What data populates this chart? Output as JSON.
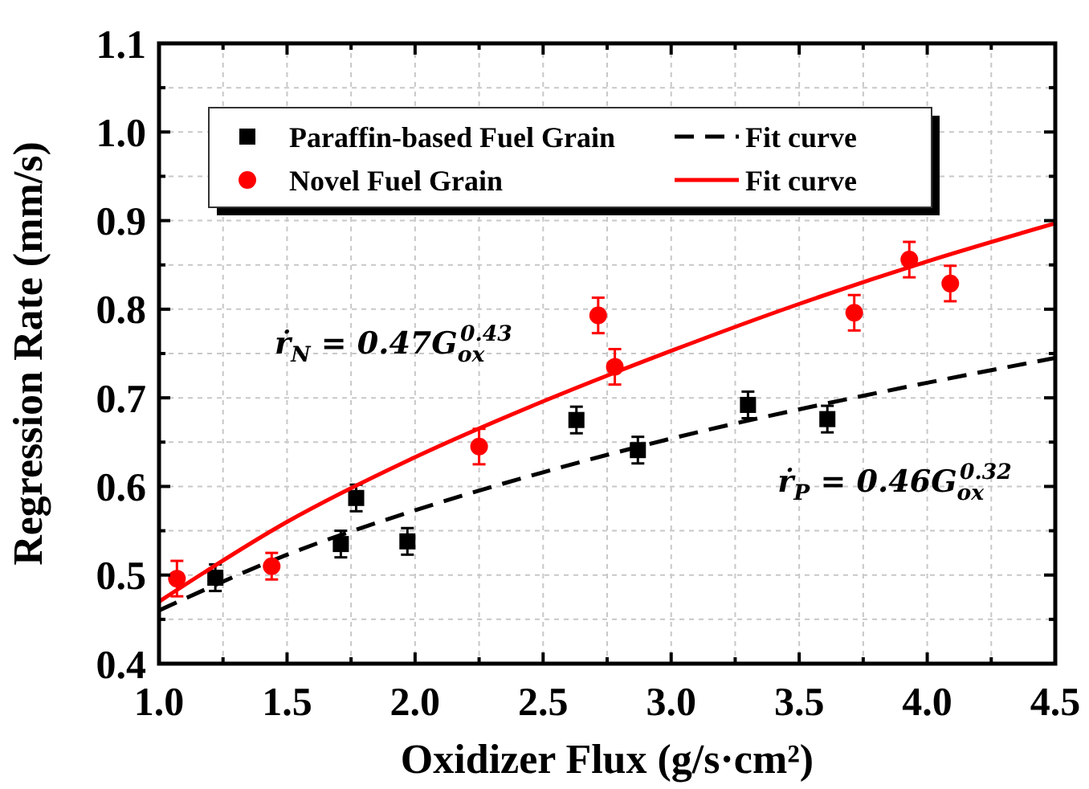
{
  "chart_data": {
    "type": "scatter",
    "xlabel": "Oxidizer Flux (g/s·cm²)",
    "ylabel": "Regression Rate (mm/s)",
    "xlim": [
      1,
      4.5
    ],
    "ylim": [
      0.4,
      1.1
    ],
    "xticks": [
      {
        "value": 1,
        "label": "1.0"
      },
      {
        "value": 1.25,
        "label": null
      },
      {
        "value": 1.5,
        "label": "1.5"
      },
      {
        "value": 1.75,
        "label": null
      },
      {
        "value": 2,
        "label": "2.0"
      },
      {
        "value": 2.25,
        "label": null
      },
      {
        "value": 2.5,
        "label": "2.5"
      },
      {
        "value": 2.75,
        "label": null
      },
      {
        "value": 3,
        "label": "3.0"
      },
      {
        "value": 3.25,
        "label": null
      },
      {
        "value": 3.5,
        "label": "3.5"
      },
      {
        "value": 3.75,
        "label": null
      },
      {
        "value": 4,
        "label": "4.0"
      },
      {
        "value": 4.25,
        "label": null
      },
      {
        "value": 4.5,
        "label": "4.5"
      }
    ],
    "yticks": [
      0.4,
      {
        "value": 0.45,
        "label": null
      },
      0.5,
      {
        "value": 0.55,
        "label": null
      },
      0.6,
      {
        "value": 0.65,
        "label": null
      },
      0.7,
      {
        "value": 0.75,
        "label": null
      },
      0.8,
      {
        "value": 0.85,
        "label": null
      },
      0.9,
      {
        "value": 0.95,
        "label": null
      },
      {
        "value": 1,
        "label": "1.0"
      },
      {
        "value": 1.05,
        "label": null
      },
      1.1
    ],
    "grid": true,
    "legend": "top left",
    "series": [
      {
        "name": "Paraffin-based Fuel Grain",
        "marker": "square",
        "color": "#000000",
        "x": [
          1.22,
          1.71,
          1.77,
          1.97,
          2.63,
          2.87,
          3.3,
          3.61
        ],
        "values": [
          0.497,
          0.535,
          0.587,
          0.538,
          0.675,
          0.641,
          0.692,
          0.676
        ],
        "errors": [
          0.015,
          0.015,
          0.015,
          0.015,
          0.015,
          0.015,
          0.015,
          0.015
        ]
      },
      {
        "name": "Fit curve",
        "type": "line",
        "line_style": "dashed",
        "marker": "none",
        "color": "#000000",
        "x": [
          1,
          1.5,
          2,
          2.5,
          3,
          3.5,
          4,
          4.5
        ],
        "values": [
          0.46,
          0.523,
          0.573,
          0.616,
          0.654,
          0.687,
          0.717,
          0.745
        ]
      },
      {
        "name": "Novel Fuel Grain",
        "marker": "circle",
        "color": "#ff0000",
        "x": [
          1.07,
          1.44,
          2.25,
          2.715,
          2.78,
          3.715,
          3.93,
          4.09
        ],
        "values": [
          0.496,
          0.51,
          0.645,
          0.793,
          0.735,
          0.796,
          0.856,
          0.829
        ],
        "errors": [
          0.02,
          0.015,
          0.02,
          0.02,
          0.02,
          0.02,
          0.02,
          0.02
        ]
      },
      {
        "name": "Fit curve",
        "type": "line",
        "line_style": "solid",
        "marker": "none",
        "color": "#ff0000",
        "x": [
          1,
          1.5,
          2,
          2.5,
          3,
          3.5,
          4,
          4.5
        ],
        "values": [
          0.47,
          0.56,
          0.633,
          0.696,
          0.753,
          0.806,
          0.854,
          0.897
        ]
      }
    ],
    "annotations": [
      "ṙ$_{N}$ = 0.47G$_{ox}$$^{0.43}$",
      "ṙ$_{P}$ = 0.46G$_{ox}$$^{0.32}$"
    ]
  }
}
